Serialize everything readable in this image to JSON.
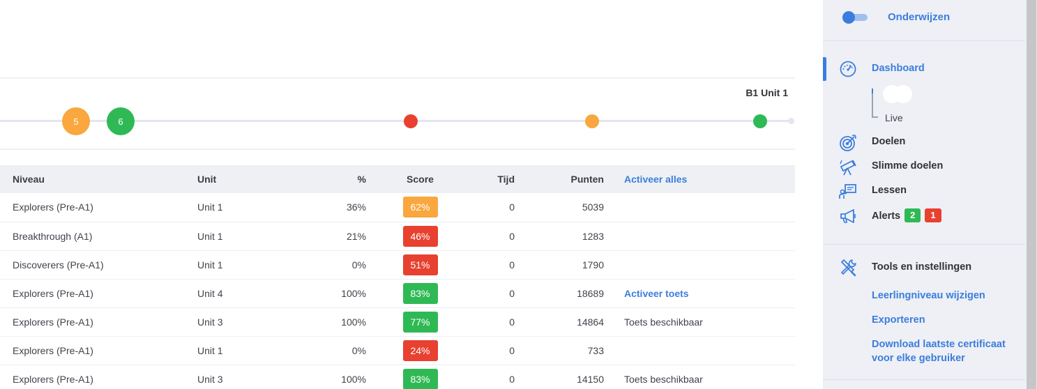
{
  "timeline": {
    "label": "B1 Unit 1",
    "nodes": [
      {
        "text": "5",
        "color": "#f9a73e",
        "size": "big"
      },
      {
        "text": "6",
        "color": "#2fb955",
        "size": "big"
      },
      {
        "text": "",
        "color": "#e8412f",
        "size": "small"
      },
      {
        "text": "",
        "color": "#f9a73e",
        "size": "small"
      },
      {
        "text": "",
        "color": "#2fb955",
        "size": "small"
      }
    ]
  },
  "table": {
    "headers": {
      "niveau": "Niveau",
      "unit": "Unit",
      "pct": "%",
      "score": "Score",
      "tijd": "Tijd",
      "punten": "Punten",
      "action": "Activeer alles"
    },
    "rows": [
      {
        "niveau": "Explorers (Pre-A1)",
        "unit": "Unit 1",
        "pct": "36%",
        "score": "62%",
        "score_color": "#f9a73e",
        "tijd": "0",
        "punten": "5039",
        "action": "",
        "action_type": "none"
      },
      {
        "niveau": "Breakthrough (A1)",
        "unit": "Unit 1",
        "pct": "21%",
        "score": "46%",
        "score_color": "#e8412f",
        "tijd": "0",
        "punten": "1283",
        "action": "",
        "action_type": "none"
      },
      {
        "niveau": "Discoverers (Pre-A1)",
        "unit": "Unit 1",
        "pct": "0%",
        "score": "51%",
        "score_color": "#e8412f",
        "tijd": "0",
        "punten": "1790",
        "action": "",
        "action_type": "none"
      },
      {
        "niveau": "Explorers (Pre-A1)",
        "unit": "Unit 4",
        "pct": "100%",
        "score": "83%",
        "score_color": "#2fb955",
        "tijd": "0",
        "punten": "18689",
        "action": "Activeer toets",
        "action_type": "link"
      },
      {
        "niveau": "Explorers (Pre-A1)",
        "unit": "Unit 3",
        "pct": "100%",
        "score": "77%",
        "score_color": "#2fb955",
        "tijd": "0",
        "punten": "14864",
        "action": "Toets beschikbaar",
        "action_type": "text"
      },
      {
        "niveau": "Explorers (Pre-A1)",
        "unit": "Unit 1",
        "pct": "0%",
        "score": "24%",
        "score_color": "#e8412f",
        "tijd": "0",
        "punten": "733",
        "action": "",
        "action_type": "none"
      },
      {
        "niveau": "Explorers (Pre-A1)",
        "unit": "Unit 3",
        "pct": "100%",
        "score": "83%",
        "score_color": "#2fb955",
        "tijd": "0",
        "punten": "14150",
        "action": "Toets beschikbaar",
        "action_type": "text"
      }
    ]
  },
  "sidebar": {
    "toggle_label": "Onderwijzen",
    "dashboard": "Dashboard",
    "live": "Live",
    "doelen": "Doelen",
    "slimme_doelen": "Slimme doelen",
    "lessen": "Lessen",
    "alerts": "Alerts",
    "alerts_green": "2",
    "alerts_red": "1",
    "tools": "Tools en instellingen",
    "links": [
      "Leerlingniveau wijzigen",
      "Exporteren",
      "Download laatste certificaat voor elke gebruiker"
    ]
  },
  "colors": {
    "accent": "#3b7ddd",
    "green": "#2fb955",
    "red": "#e8412f",
    "orange": "#f9a73e"
  },
  "icons": {
    "dashboard": "speedometer-icon",
    "doelen": "target-icon",
    "slimme_doelen": "telescope-icon",
    "lessen": "teacher-board-icon",
    "alerts": "megaphone-icon",
    "tools": "tools-icon"
  }
}
